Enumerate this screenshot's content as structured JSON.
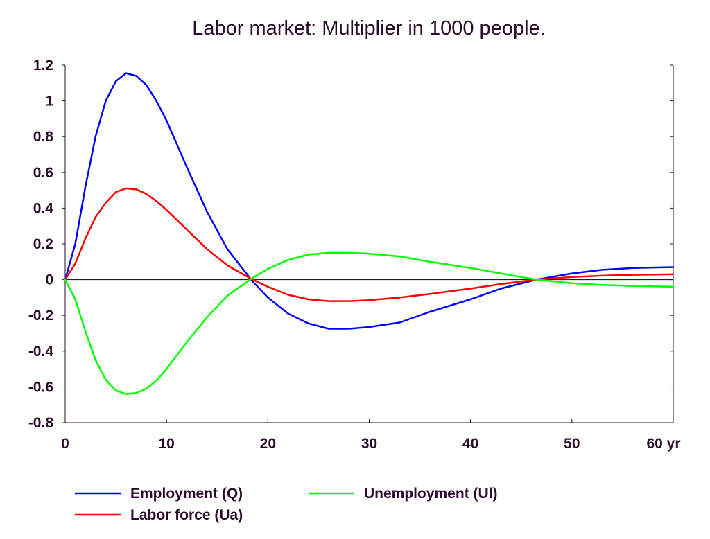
{
  "chart_data": {
    "type": "line",
    "title": "Labor market: Multiplier in 1000 people.",
    "xlim": [
      0,
      60
    ],
    "ylim": [
      -0.8,
      1.2
    ],
    "x_ticks": [
      0,
      10,
      20,
      30,
      40,
      50,
      60
    ],
    "x_tick_labels": [
      "0",
      "10",
      "20",
      "30",
      "40",
      "50",
      "60 yr"
    ],
    "y_ticks": [
      1.2,
      1,
      0.8,
      0.6,
      0.4,
      0.2,
      0,
      -0.2,
      -0.4,
      -0.6,
      -0.8
    ],
    "y_tick_labels": [
      "1.2",
      "1",
      "0.8",
      "0.6",
      "0.4",
      "0.2",
      "0",
      "-0.2",
      "-0.4",
      "-0.6",
      "-0.8"
    ],
    "grid": false,
    "zero_line": true,
    "legend_position": "bottom",
    "x": [
      0,
      1,
      2,
      3,
      4,
      5,
      6,
      7,
      8,
      9,
      10,
      12,
      14,
      16,
      18.5,
      20,
      22,
      24,
      26,
      28,
      30,
      33,
      36,
      40,
      43,
      46.5,
      50,
      53,
      56,
      60
    ],
    "series": [
      {
        "name": "Employment (Q)",
        "color": "#0000ff",
        "values": [
          0,
          0.2,
          0.52,
          0.8,
          1.0,
          1.11,
          1.155,
          1.14,
          1.09,
          1.0,
          0.89,
          0.63,
          0.38,
          0.17,
          -0.01,
          -0.1,
          -0.19,
          -0.245,
          -0.275,
          -0.275,
          -0.265,
          -0.24,
          -0.18,
          -0.11,
          -0.05,
          0.0,
          0.035,
          0.055,
          0.065,
          0.07
        ]
      },
      {
        "name": "Labor force (Ua)",
        "color": "#ff0000",
        "values": [
          0,
          0.09,
          0.23,
          0.35,
          0.43,
          0.49,
          0.51,
          0.505,
          0.48,
          0.44,
          0.39,
          0.28,
          0.17,
          0.08,
          0.0,
          -0.04,
          -0.085,
          -0.11,
          -0.12,
          -0.12,
          -0.115,
          -0.1,
          -0.08,
          -0.05,
          -0.025,
          0.0,
          0.015,
          0.022,
          0.027,
          0.03
        ]
      },
      {
        "name": "Unemployment (Ul)",
        "color": "#00ff00",
        "values": [
          0,
          -0.11,
          -0.29,
          -0.45,
          -0.56,
          -0.62,
          -0.64,
          -0.635,
          -0.61,
          -0.565,
          -0.5,
          -0.35,
          -0.21,
          -0.09,
          0.01,
          0.06,
          0.11,
          0.14,
          0.15,
          0.15,
          0.145,
          0.13,
          0.1,
          0.065,
          0.035,
          0.0,
          -0.02,
          -0.03,
          -0.035,
          -0.04
        ]
      }
    ],
    "legend": [
      {
        "label": "Employment (Q)",
        "color": "#0000ff"
      },
      {
        "label": "Unemployment (Ul)",
        "color": "#00ff00"
      },
      {
        "label": "Labor force (Ua)",
        "color": "#ff0000"
      }
    ]
  }
}
